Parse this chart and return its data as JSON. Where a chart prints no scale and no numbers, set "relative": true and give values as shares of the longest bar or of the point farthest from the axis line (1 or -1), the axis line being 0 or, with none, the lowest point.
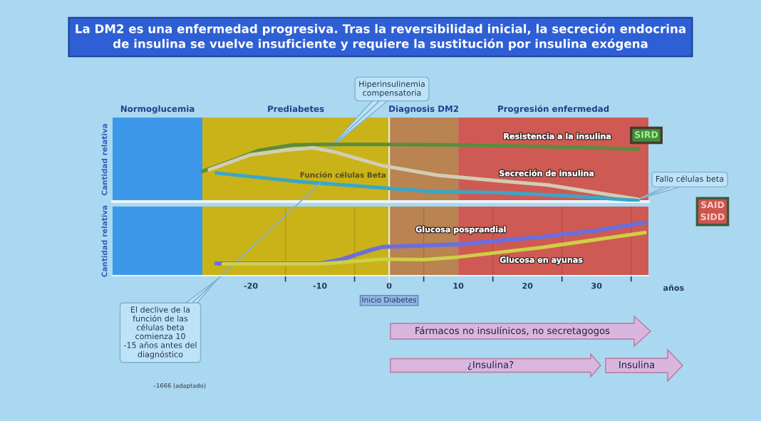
{
  "chart_data": [
    {
      "type": "line",
      "title": "La DM2 es una enfermedad progresiva. Tras la reversibilidad inicial, la secreción endocrina\nde insulina se vuelve insuficiente y requiere la sustitución por insulina exógena",
      "ylabel": "Cantidad relativa",
      "relative": true,
      "xlim": [
        -40,
        37.5
      ],
      "tick_labels": false,
      "series": [
        {
          "name": "Resistencia a la insulina",
          "color": "#5b8c3c",
          "x": [
            -27,
            -22,
            -19,
            -14,
            -10,
            0,
            10,
            23,
            36
          ],
          "values": [
            0.53,
            0.75,
            0.89,
            0.99,
            1.0,
            1.0,
            0.99,
            0.96,
            0.92
          ]
        },
        {
          "name": "Secreción de insulina",
          "color": "#d2cdb3",
          "x": [
            -26,
            -20,
            -15,
            -11,
            -8,
            -1,
            7,
            16,
            23,
            36
          ],
          "values": [
            0.56,
            0.82,
            0.9,
            0.94,
            0.87,
            0.63,
            0.46,
            0.36,
            0.29,
            0.04
          ]
        },
        {
          "name": "Función células Beta",
          "color": "#3aa6c6",
          "x": [
            -25,
            -13,
            -1,
            7,
            16,
            26,
            36
          ],
          "values": [
            0.5,
            0.35,
            0.24,
            0.17,
            0.16,
            0.1,
            0.02
          ]
        }
      ],
      "bands": [
        {
          "axis": "x",
          "from": -40,
          "to": -27,
          "label": "Normoglucemia",
          "color": "#3d98ea"
        },
        {
          "axis": "x",
          "from": -27,
          "to": 0,
          "label": "Prediabetes",
          "color": "#c9b318"
        },
        {
          "axis": "x",
          "from": 0,
          "to": 10,
          "label": "Diagnosis DM2",
          "color": "#b98352"
        },
        {
          "axis": "x",
          "from": 10,
          "to": 37.5,
          "label": "Progresión enfermedad",
          "color": "#cf5a53"
        }
      ],
      "ref_lines": [
        {
          "axis": "x",
          "value": 0,
          "color": "#e6ecd8"
        }
      ],
      "annotations": [
        {
          "text": "Hiperinsulinemia\ncompensatoria",
          "x": -9,
          "y": 0.89
        },
        {
          "text": "Fallo células beta",
          "x": 36,
          "y": 0.04
        },
        {
          "text": "El declive de la\nfunción de las\ncélulas beta\ncomienza 10\n-15 años antes del\ndiagnóstico",
          "x": -10,
          "y": 0.32
        },
        "SIRD",
        "SAID\nSIDD"
      ]
    },
    {
      "type": "line",
      "ylabel": "Cantidad relativa",
      "xlabel": "años",
      "relative": true,
      "xlim": [
        -40,
        37.5
      ],
      "tick_labels": "x",
      "grid": "x",
      "xticks": [
        -20,
        {
          "value": -15,
          "label": null
        },
        -10,
        {
          "value": -5,
          "label": null
        },
        0,
        {
          "value": 5,
          "label": null
        },
        10,
        {
          "value": 15,
          "label": null
        },
        20,
        {
          "value": 25,
          "label": null
        },
        30,
        {
          "value": 35,
          "label": null
        }
      ],
      "series": [
        {
          "name": "Glucosa posprandial",
          "color": "#6b6fdc",
          "x": [
            -25,
            -10,
            -7,
            -3,
            -1,
            10,
            22,
            30,
            37
          ],
          "values": [
            0.23,
            0.23,
            0.3,
            0.47,
            0.54,
            0.59,
            0.73,
            0.85,
            1.0
          ]
        },
        {
          "name": "Glucosa en ayunas",
          "color": "#cfcf45",
          "x": [
            -24,
            -10,
            -1,
            5,
            10,
            22,
            37
          ],
          "values": [
            0.22,
            0.22,
            0.31,
            0.3,
            0.35,
            0.53,
            0.81
          ]
        }
      ],
      "bands": [
        {
          "axis": "x",
          "from": -40,
          "to": -27,
          "color": "#3d98ea"
        },
        {
          "axis": "x",
          "from": -27,
          "to": 0,
          "color": "#c9b318"
        },
        {
          "axis": "x",
          "from": 0,
          "to": 10,
          "color": "#b98352"
        },
        {
          "axis": "x",
          "from": 10,
          "to": 37.5,
          "color": "#cf5a53"
        }
      ],
      "ref_lines": [
        {
          "axis": "x",
          "value": 0,
          "label": "Inicio Diabetes",
          "color": "#e6ecd8"
        }
      ],
      "annotations": [
        "Fármacos no insulínicos, no secretagogos",
        "¿Insulina?",
        "Insulina",
        "–1666 (adaptado)"
      ]
    }
  ]
}
